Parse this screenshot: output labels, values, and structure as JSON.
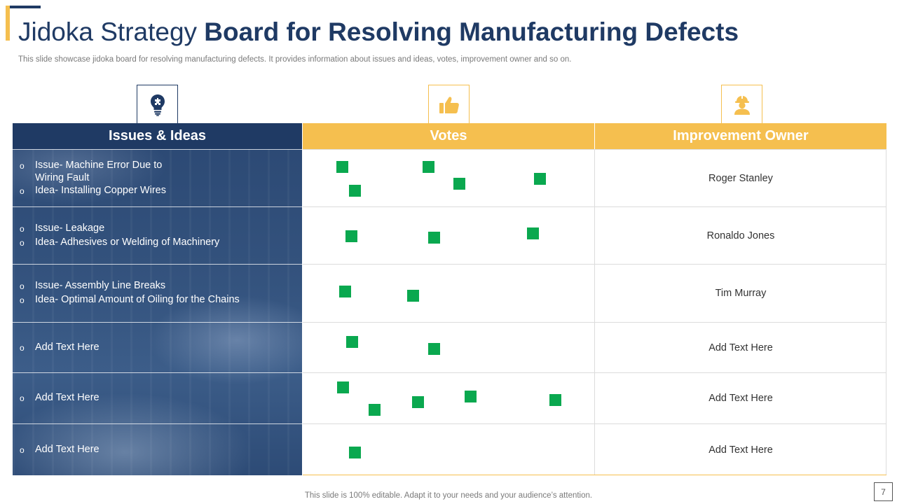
{
  "title": {
    "light": "Jidoka Strategy",
    "main": " Board for Resolving Manufacturing Defects"
  },
  "subtitle": "This slide showcase jidoka board for resolving manufacturing defects. It provides information about issues and ideas, votes, improvement owner and so on.",
  "icons": {
    "issues": "lightbulb-puzzle-icon",
    "votes": "thumbs-up-icon",
    "owner": "worker-helmet-icon"
  },
  "colors": {
    "navy": "#1F3A64",
    "gold": "#F5BF4F",
    "vote_green": "#0AA84F"
  },
  "headers": {
    "issues": "Issues & Ideas",
    "votes": "Votes",
    "owner": "Improvement Owner"
  },
  "rows": [
    {
      "lines": [
        {
          "text": "Issue- Machine Error Due to\nWiring Fault"
        },
        {
          "text": "Idea- Installing Copper Wires"
        }
      ],
      "votes": 5,
      "owner": "Roger Stanley"
    },
    {
      "lines": [
        {
          "text": "Issue- Leakage"
        },
        {
          "text": "Idea- Adhesives or Welding of Machinery"
        }
      ],
      "votes": 3,
      "owner": "Ronaldo Jones"
    },
    {
      "lines": [
        {
          "text": "Issue- Assembly Line Breaks"
        },
        {
          "text": "Idea- Optimal Amount of Oiling for the Chains"
        }
      ],
      "votes": 2,
      "owner": "Tim Murray"
    },
    {
      "lines": [
        {
          "text": "Add Text Here"
        }
      ],
      "votes": 2,
      "owner": "Add Text Here"
    },
    {
      "lines": [
        {
          "text": "Add Text Here"
        }
      ],
      "votes": 5,
      "owner": "Add Text Here"
    },
    {
      "lines": [
        {
          "text": "Add Text Here"
        }
      ],
      "votes": 1,
      "owner": "Add Text Here"
    }
  ],
  "bullet_mark": "o",
  "footer": "This slide is 100% editable. Adapt it to your needs and your audience’s attention.",
  "page_number": "7"
}
